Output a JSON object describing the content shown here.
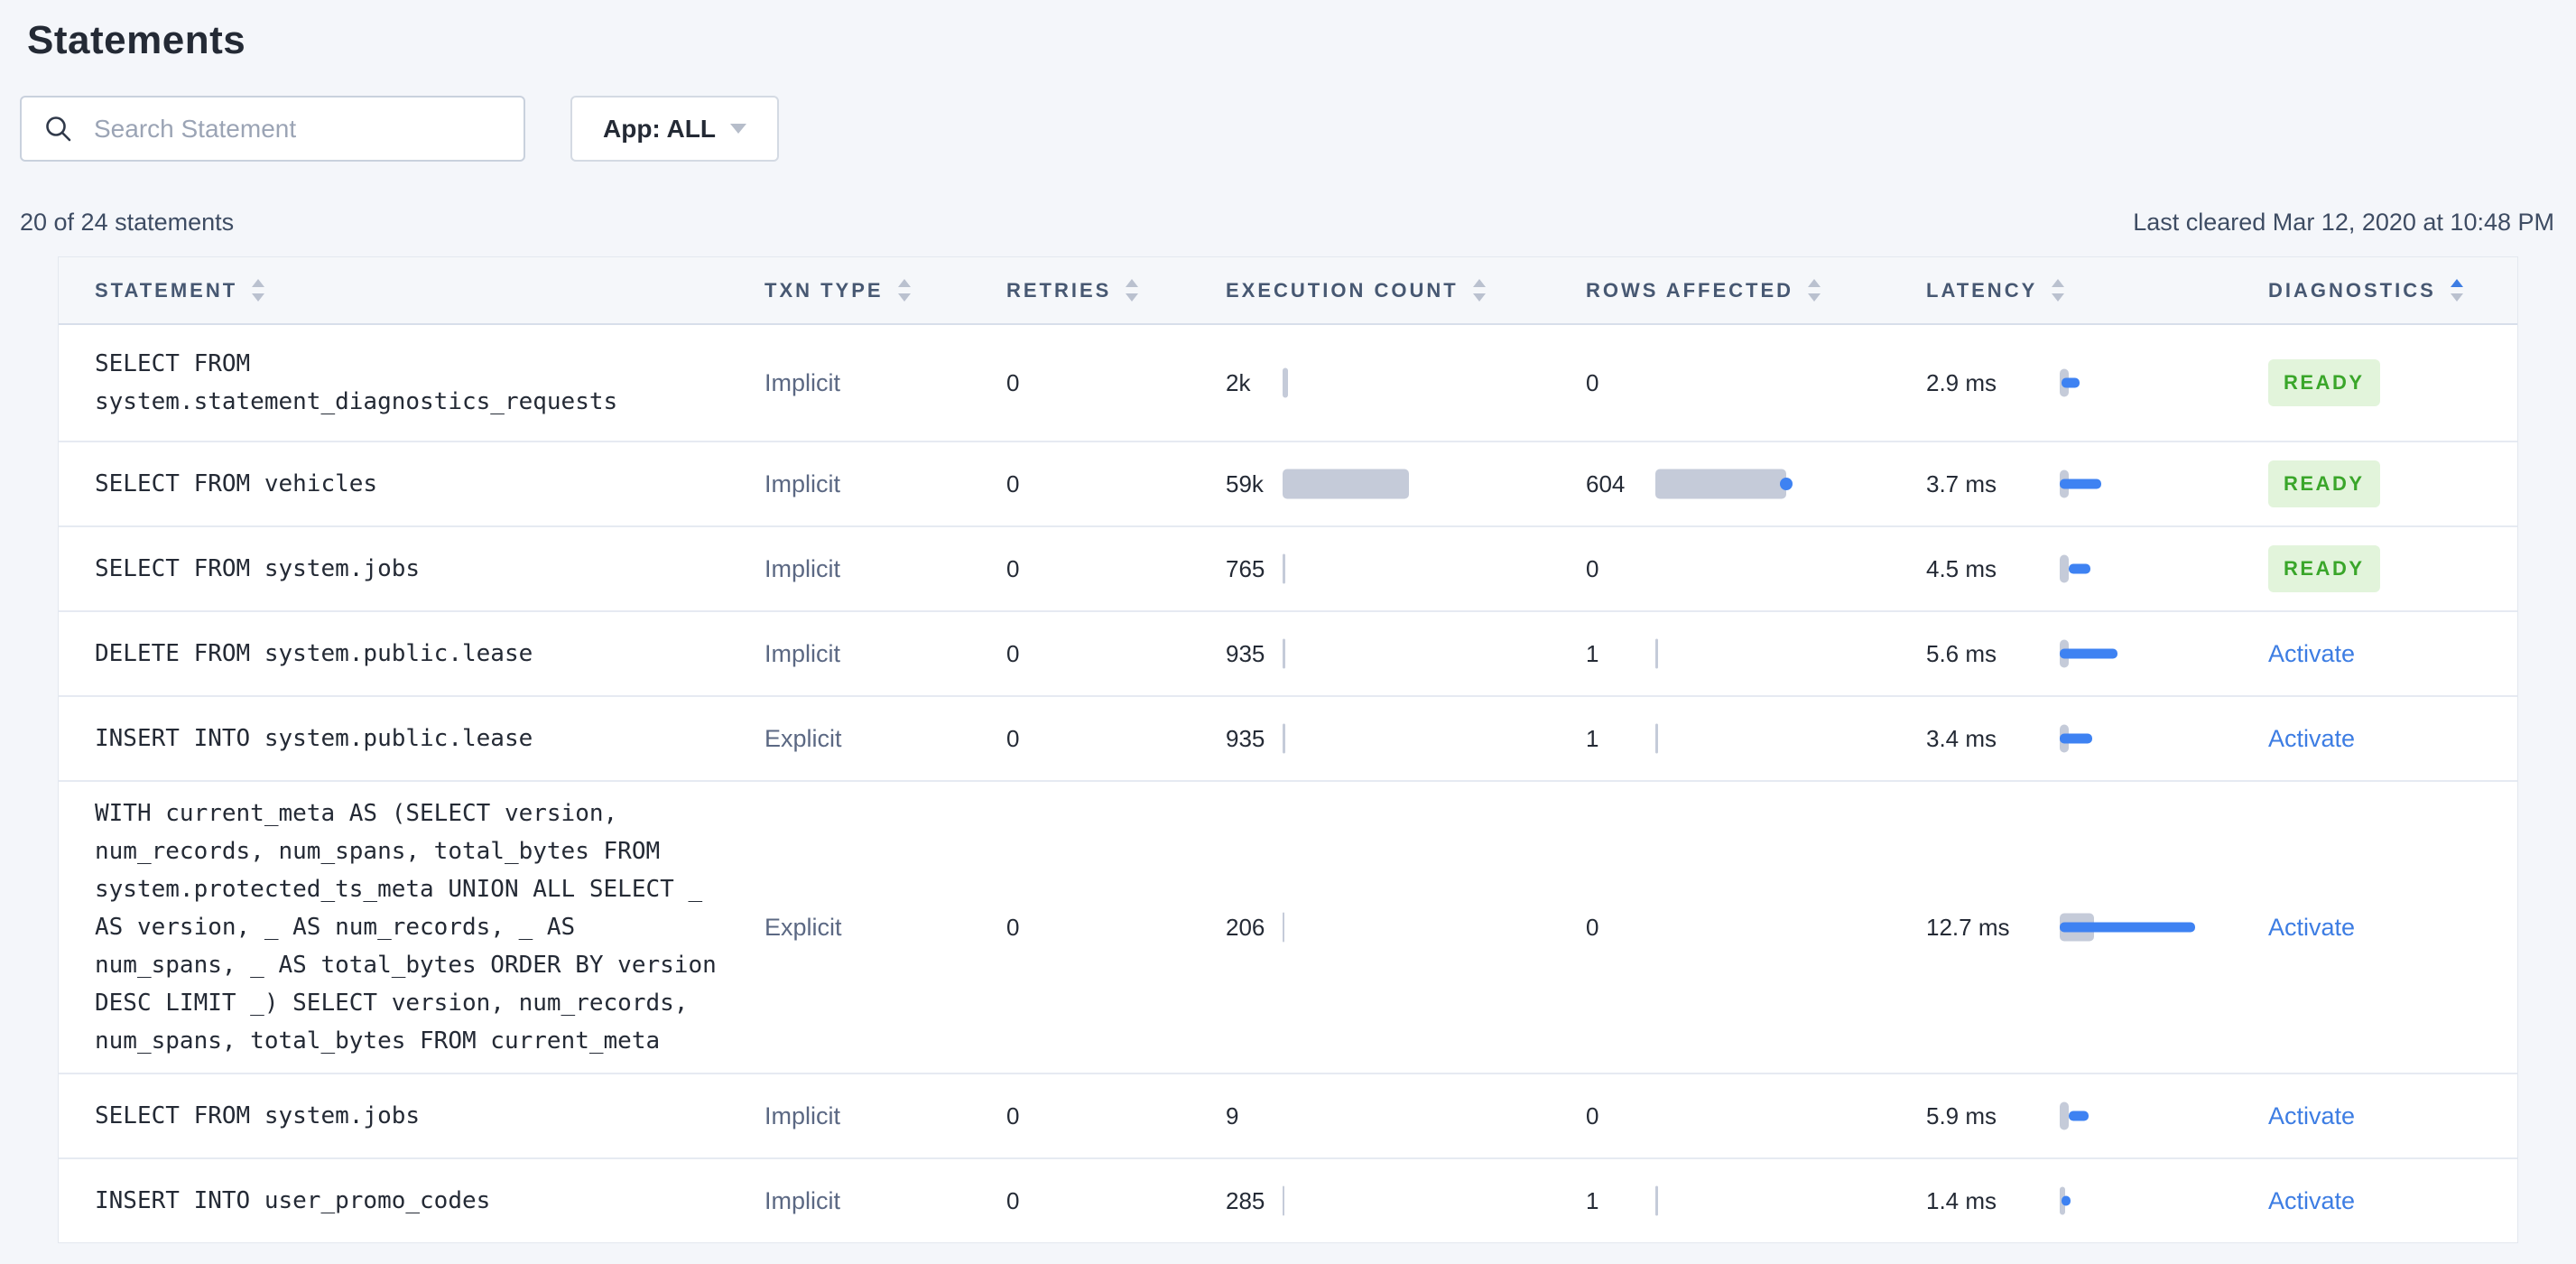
{
  "page": {
    "title": "Statements"
  },
  "toolbar": {
    "search_placeholder": "Search Statement",
    "app_filter_label": "App: ALL"
  },
  "summary": {
    "count_text": "20 of 24 statements",
    "last_cleared": "Last cleared Mar 12, 2020 at 10:48 PM"
  },
  "colors": {
    "accent_blue": "#3d7de3",
    "bar_blue": "#3e82f2",
    "bar_gray": "#c5cbd9",
    "badge_green_text": "#3aa62a",
    "badge_green_bg": "#e2f4db",
    "header_text": "#475872"
  },
  "table": {
    "columns": [
      {
        "label": "STATEMENT",
        "sort": "none"
      },
      {
        "label": "TXN TYPE",
        "sort": "none"
      },
      {
        "label": "RETRIES",
        "sort": "none"
      },
      {
        "label": "EXECUTION COUNT",
        "sort": "none"
      },
      {
        "label": "ROWS AFFECTED",
        "sort": "none"
      },
      {
        "label": "LATENCY",
        "sort": "none"
      },
      {
        "label": "DIAGNOSTICS",
        "sort": "asc"
      }
    ],
    "rows": [
      {
        "statement": "SELECT FROM system.statement_diagnostics_requests",
        "txn_type": "Implicit",
        "retries": "0",
        "execution_count": "2k",
        "rows_affected": "0",
        "latency": "2.9 ms",
        "bars": {
          "exec": 6,
          "rows": 0,
          "dot": false,
          "pill": 10,
          "off": 2,
          "lat": 20
        },
        "diagnostics": {
          "type": "badge",
          "label": "READY"
        }
      },
      {
        "statement": "SELECT FROM vehicles",
        "txn_type": "Implicit",
        "retries": "0",
        "execution_count": "59k",
        "rows_affected": "604",
        "latency": "3.7 ms",
        "bars": {
          "exec": 140,
          "rows": 145,
          "dot": true,
          "pill": 10,
          "off": 0,
          "lat": 46
        },
        "diagnostics": {
          "type": "badge",
          "label": "READY"
        }
      },
      {
        "statement": "SELECT FROM system.jobs",
        "txn_type": "Implicit",
        "retries": "0",
        "execution_count": "765",
        "rows_affected": "0",
        "latency": "4.5 ms",
        "bars": {
          "exec": 3,
          "rows": 0,
          "dot": false,
          "pill": 10,
          "off": 10,
          "lat": 24
        },
        "diagnostics": {
          "type": "badge",
          "label": "READY"
        }
      },
      {
        "statement": "DELETE FROM system.public.lease",
        "txn_type": "Implicit",
        "retries": "0",
        "execution_count": "935",
        "rows_affected": "1",
        "latency": "5.6 ms",
        "bars": {
          "exec": 3,
          "rows": 3,
          "dot": false,
          "pill": 10,
          "off": 0,
          "lat": 64
        },
        "diagnostics": {
          "type": "link",
          "label": "Activate"
        }
      },
      {
        "statement": "INSERT INTO system.public.lease",
        "txn_type": "Explicit",
        "retries": "0",
        "execution_count": "935",
        "rows_affected": "1",
        "latency": "3.4 ms",
        "bars": {
          "exec": 3,
          "rows": 3,
          "dot": false,
          "pill": 10,
          "off": 0,
          "lat": 36
        },
        "diagnostics": {
          "type": "link",
          "label": "Activate"
        }
      },
      {
        "statement": "WITH current_meta AS (SELECT version, num_records, num_spans, total_bytes FROM system.protected_ts_meta UNION ALL SELECT _ AS version, _ AS num_records, _ AS num_spans, _ AS total_bytes ORDER BY version DESC LIMIT _) SELECT version, num_records, num_spans, total_bytes FROM current_meta",
        "txn_type": "Explicit",
        "retries": "0",
        "execution_count": "206",
        "rows_affected": "0",
        "latency": "12.7 ms",
        "bars": {
          "exec": 2,
          "rows": 0,
          "dot": false,
          "pill": 38,
          "off": 0,
          "lat": 150
        },
        "diagnostics": {
          "type": "link",
          "label": "Activate"
        }
      },
      {
        "statement": "SELECT FROM system.jobs",
        "txn_type": "Implicit",
        "retries": "0",
        "execution_count": "9",
        "rows_affected": "0",
        "latency": "5.9 ms",
        "bars": {
          "exec": 0,
          "rows": 0,
          "dot": false,
          "pill": 10,
          "off": 10,
          "lat": 22
        },
        "diagnostics": {
          "type": "link",
          "label": "Activate"
        }
      },
      {
        "statement": "INSERT INTO user_promo_codes",
        "txn_type": "Implicit",
        "retries": "0",
        "execution_count": "285",
        "rows_affected": "1",
        "latency": "1.4 ms",
        "bars": {
          "exec": 2,
          "rows": 3,
          "dot": false,
          "pill": 6,
          "off": 2,
          "lat": 10
        },
        "diagnostics": {
          "type": "link",
          "label": "Activate"
        }
      }
    ]
  }
}
